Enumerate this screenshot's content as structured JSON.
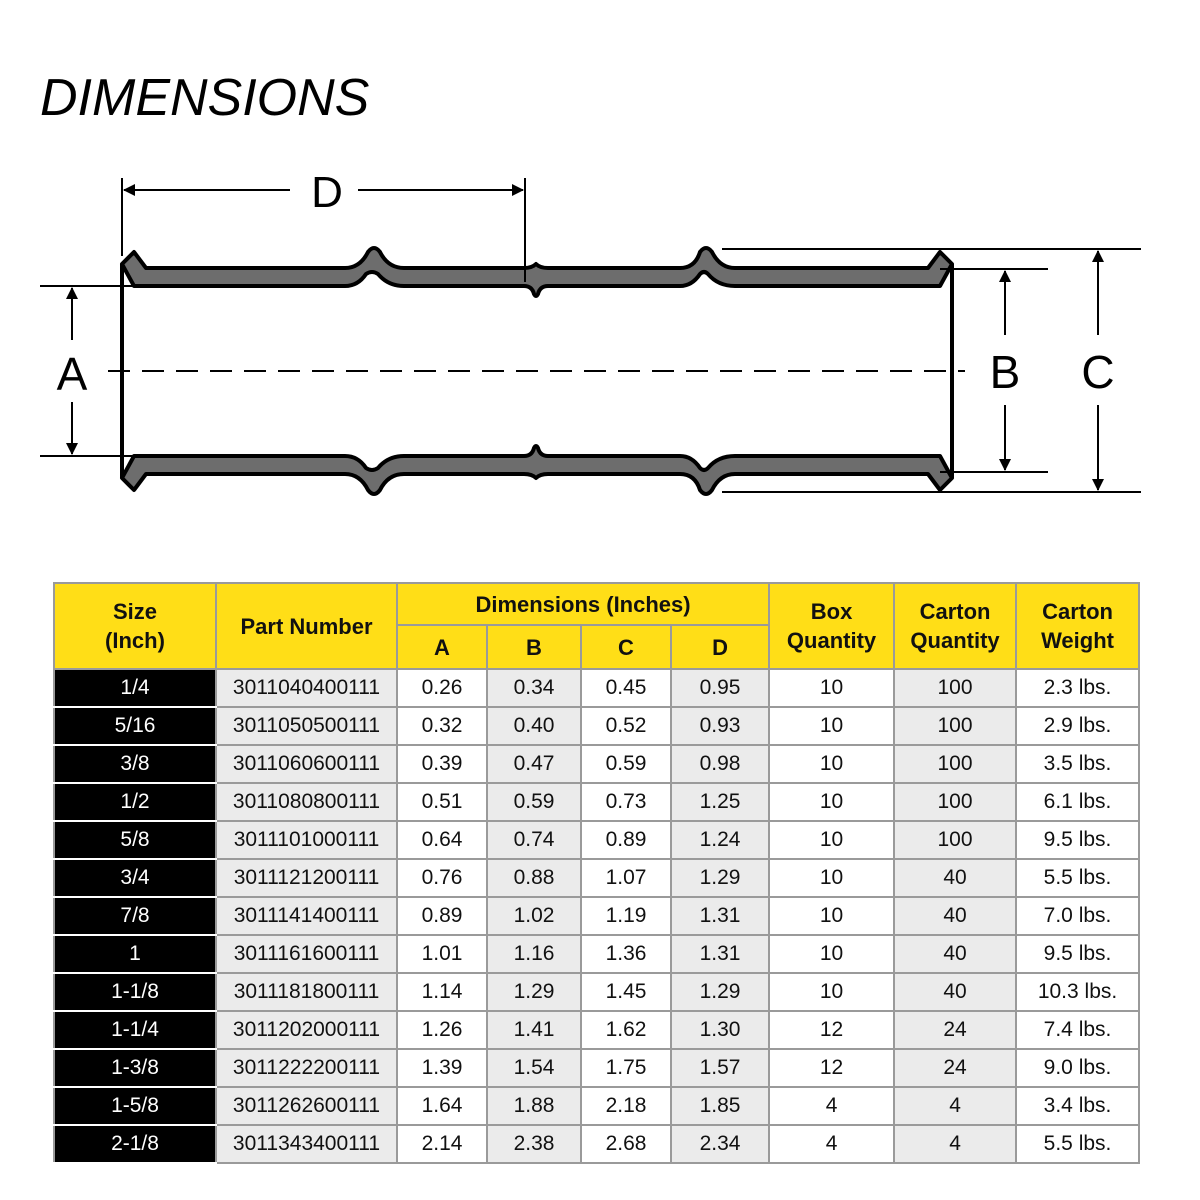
{
  "title": "DIMENSIONS",
  "diagram": {
    "labels": {
      "a": "A",
      "b": "B",
      "c": "C",
      "d": "D"
    }
  },
  "table": {
    "headers": {
      "size": "Size (Inch)",
      "size_line1": "Size",
      "size_line2": "(Inch)",
      "part_number": "Part Number",
      "dimensions": "Dimensions (Inches)",
      "a": "A",
      "b": "B",
      "c": "C",
      "d": "D",
      "box_qty_line1": "Box",
      "box_qty_line2": "Quantity",
      "carton_qty_line1": "Carton",
      "carton_qty_line2": "Quantity",
      "carton_wt_line1": "Carton",
      "carton_wt_line2": "Weight"
    },
    "rows": [
      [
        "1/4",
        "3011040400111",
        "0.26",
        "0.34",
        "0.45",
        "0.95",
        "10",
        "100",
        "2.3 lbs."
      ],
      [
        "5/16",
        "3011050500111",
        "0.32",
        "0.40",
        "0.52",
        "0.93",
        "10",
        "100",
        "2.9 lbs."
      ],
      [
        "3/8",
        "3011060600111",
        "0.39",
        "0.47",
        "0.59",
        "0.98",
        "10",
        "100",
        "3.5 lbs."
      ],
      [
        "1/2",
        "3011080800111",
        "0.51",
        "0.59",
        "0.73",
        "1.25",
        "10",
        "100",
        "6.1 lbs."
      ],
      [
        "5/8",
        "3011101000111",
        "0.64",
        "0.74",
        "0.89",
        "1.24",
        "10",
        "100",
        "9.5 lbs."
      ],
      [
        "3/4",
        "3011121200111",
        "0.76",
        "0.88",
        "1.07",
        "1.29",
        "10",
        "40",
        "5.5 lbs."
      ],
      [
        "7/8",
        "3011141400111",
        "0.89",
        "1.02",
        "1.19",
        "1.31",
        "10",
        "40",
        "7.0 lbs."
      ],
      [
        "1",
        "3011161600111",
        "1.01",
        "1.16",
        "1.36",
        "1.31",
        "10",
        "40",
        "9.5 lbs."
      ],
      [
        "1-1/8",
        "3011181800111",
        "1.14",
        "1.29",
        "1.45",
        "1.29",
        "10",
        "40",
        "10.3 lbs."
      ],
      [
        "1-1/4",
        "3011202000111",
        "1.26",
        "1.41",
        "1.62",
        "1.30",
        "12",
        "24",
        "7.4 lbs."
      ],
      [
        "1-3/8",
        "3011222200111",
        "1.39",
        "1.54",
        "1.75",
        "1.57",
        "12",
        "24",
        "9.0 lbs."
      ],
      [
        "1-5/8",
        "3011262600111",
        "1.64",
        "1.88",
        "2.18",
        "1.85",
        "4",
        "4",
        "3.4 lbs."
      ],
      [
        "2-1/8",
        "3011343400111",
        "2.14",
        "2.38",
        "2.68",
        "2.34",
        "4",
        "4",
        "5.5 lbs."
      ]
    ]
  },
  "colors": {
    "header": "#ffde17",
    "size_column": "#000000",
    "alt_cell": "#ebebeb",
    "pipe": "#6d6d6d"
  }
}
